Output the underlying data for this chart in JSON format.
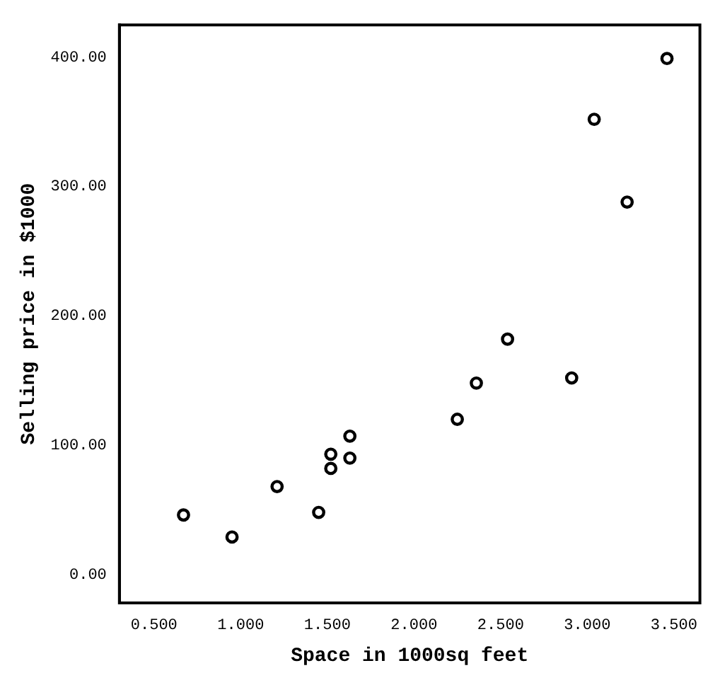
{
  "chart_data": {
    "type": "scatter",
    "xlabel": "Space in 1000sq feet",
    "ylabel": "Selling price in $1000",
    "x": [
      3.46,
      3.04,
      3.23,
      2.54,
      2.91,
      2.36,
      2.25,
      1.63,
      1.52,
      1.63,
      1.52,
      1.21,
      1.45,
      0.67,
      0.95
    ],
    "series": [
      {
        "color": "#000000",
        "values": [
          399,
          352,
          288,
          182,
          152,
          148,
          120,
          107,
          93,
          90,
          82,
          68,
          48,
          46,
          29
        ]
      }
    ],
    "xlim": [
      0.3,
      3.65
    ],
    "ylim": [
      -22,
      425
    ],
    "xticks": [
      {
        "value": 0.5,
        "label": "0.500"
      },
      {
        "value": 1,
        "label": "1.000"
      },
      {
        "value": 1.5,
        "label": "1.500"
      },
      {
        "value": 2,
        "label": "2.000"
      },
      {
        "value": 2.5,
        "label": "2.500"
      },
      {
        "value": 3,
        "label": "3.000"
      },
      {
        "value": 3.5,
        "label": "3.500"
      }
    ],
    "yticks": [
      {
        "value": 0,
        "label": "0.00"
      },
      {
        "value": 100,
        "label": "100.00"
      },
      {
        "value": 200,
        "label": "200.00"
      },
      {
        "value": 300,
        "label": "300.00"
      },
      {
        "value": 400,
        "label": "400.00"
      }
    ],
    "grid": false,
    "legend": false,
    "marker": "circle"
  }
}
